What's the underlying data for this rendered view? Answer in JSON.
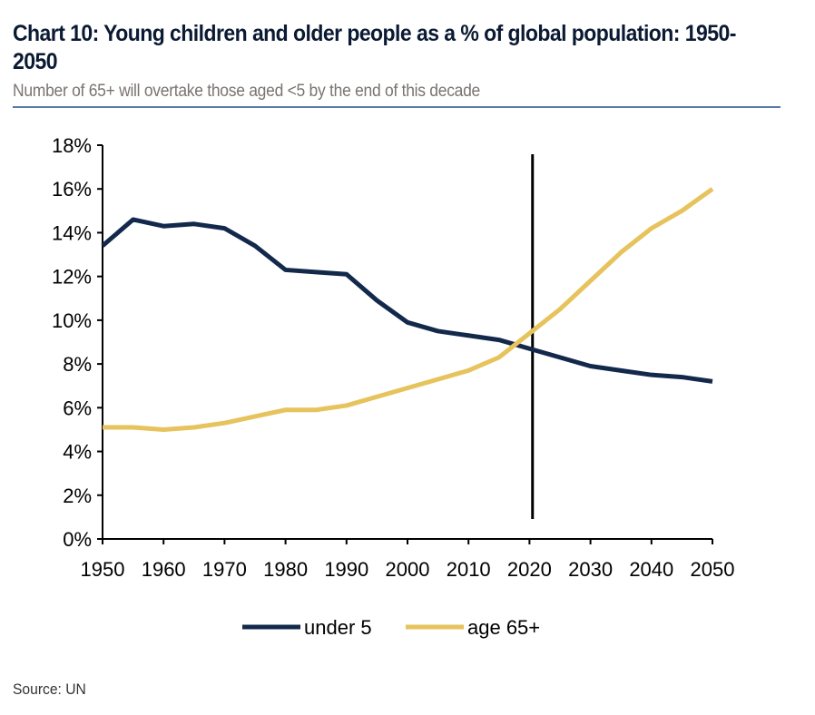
{
  "title": "Chart 10: Young children and older people as a % of global population: 1950-2050",
  "subtitle": "Number of 65+ will overtake those aged <5 by the end of this decade",
  "source": "Source: UN",
  "chart_data": {
    "type": "line",
    "title": "Chart 10: Young children and older people as a % of global population: 1950-2050",
    "xlabel": "",
    "ylabel": "",
    "x": [
      1950,
      1955,
      1960,
      1965,
      1970,
      1975,
      1980,
      1985,
      1990,
      1995,
      2000,
      2005,
      2010,
      2015,
      2020,
      2025,
      2030,
      2035,
      2040,
      2045,
      2050
    ],
    "xticks": [
      "1950",
      "1960",
      "1970",
      "1980",
      "1990",
      "2000",
      "2010",
      "2020",
      "2030",
      "2040",
      "2050"
    ],
    "yticks": [
      "0%",
      "2%",
      "4%",
      "6%",
      "8%",
      "10%",
      "12%",
      "14%",
      "16%",
      "18%"
    ],
    "xlim": [
      1950,
      2050
    ],
    "ylim": [
      0,
      18
    ],
    "grid": false,
    "legend": "bottom",
    "vertical_marker_x": 2020.5,
    "series": [
      {
        "name": "under 5",
        "color": "#13294b",
        "values": [
          13.4,
          14.6,
          14.3,
          14.4,
          14.2,
          13.4,
          12.3,
          12.2,
          12.1,
          10.9,
          9.9,
          9.5,
          9.3,
          9.1,
          8.7,
          8.3,
          7.9,
          7.7,
          7.5,
          7.4,
          7.2
        ]
      },
      {
        "name": "age 65+",
        "color": "#e6c35c",
        "values": [
          5.1,
          5.1,
          5.0,
          5.1,
          5.3,
          5.6,
          5.9,
          5.9,
          6.1,
          6.5,
          6.9,
          7.3,
          7.7,
          8.3,
          9.4,
          10.5,
          11.8,
          13.1,
          14.2,
          15.0,
          16.0
        ]
      }
    ]
  }
}
